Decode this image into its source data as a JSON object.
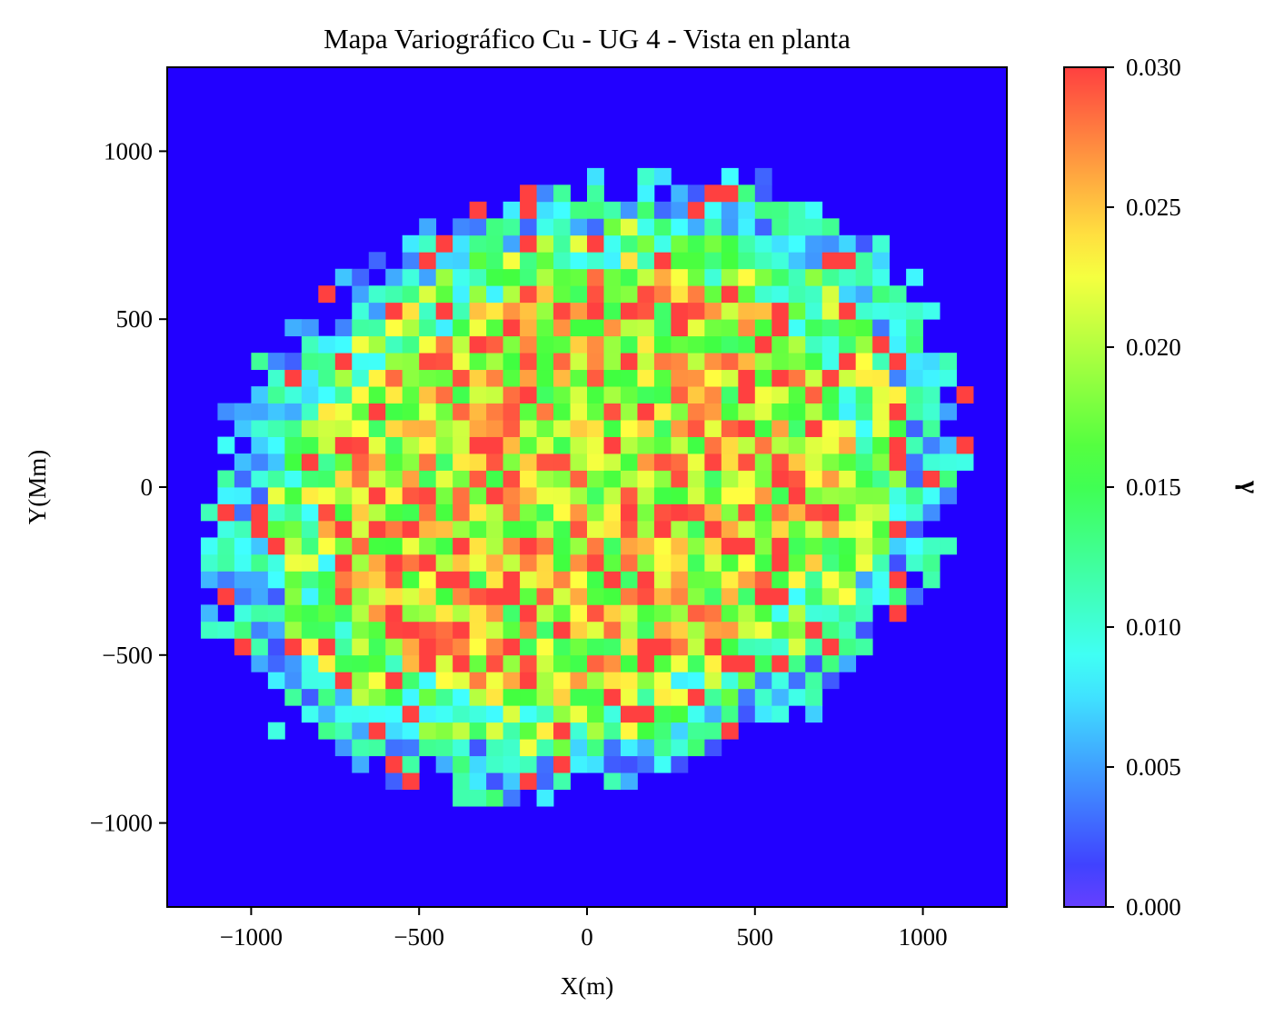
{
  "chart_data": {
    "type": "heatmap",
    "title": "Mapa Variográfico Cu - UG 4 - Vista en planta",
    "xlabel": "X(m)",
    "ylabel": "Y(Mm)",
    "colorbar_label": "γ",
    "xlim": [
      -1250,
      1250
    ],
    "ylim": [
      -1250,
      1250
    ],
    "x_ticks": [
      -1000,
      -500,
      0,
      500,
      1000
    ],
    "y_ticks": [
      -1000,
      -500,
      0,
      500,
      1000
    ],
    "x_tick_labels": [
      "−1000",
      "−500",
      "0",
      "500",
      "1000"
    ],
    "y_tick_labels": [
      "−1000",
      "−500",
      "0",
      "500",
      "1000"
    ],
    "color_range": [
      0.0,
      0.03
    ],
    "colorbar_ticks": [
      0.0,
      0.005,
      0.01,
      0.015,
      0.02,
      0.025,
      0.03
    ],
    "colorbar_tick_labels": [
      "0.000",
      "0.005",
      "0.010",
      "0.015",
      "0.020",
      "0.025",
      "0.030"
    ],
    "colormap": "gist_rainbow_r",
    "background_color": "#2200ff",
    "cell_size": 50,
    "columns": 50,
    "rows": 50,
    "grid": false,
    "legend": "colorbar-right",
    "cells_description": "approximately elliptical cloud of variogram cells centred at the origin, blue fill outside",
    "cells": []
  }
}
